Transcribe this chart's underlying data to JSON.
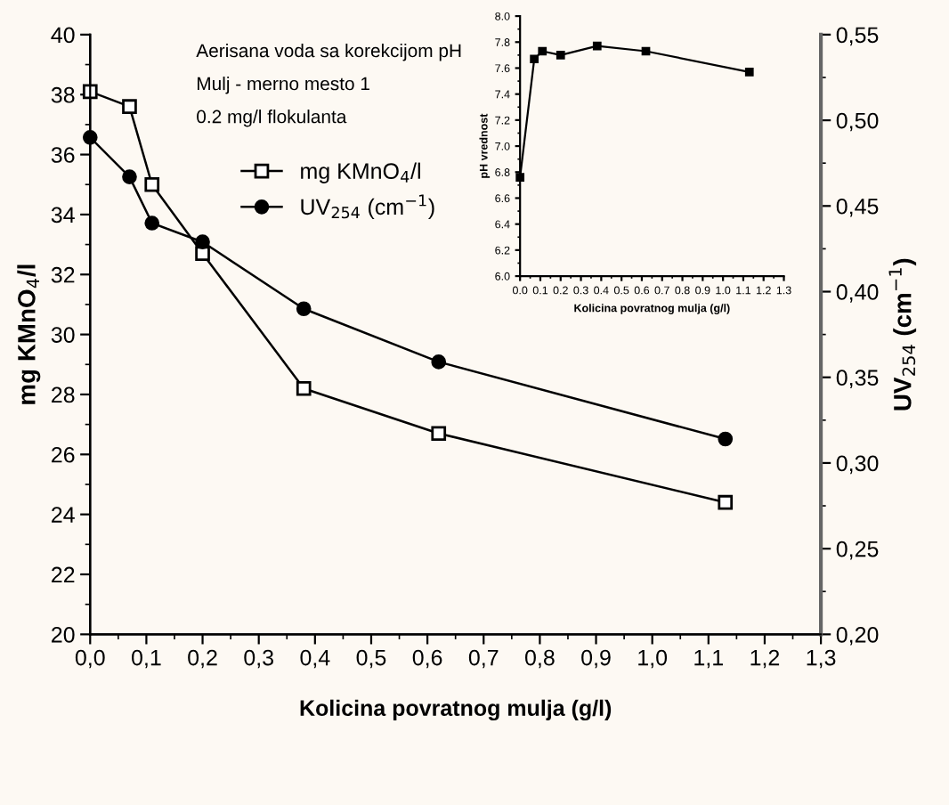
{
  "chart_data": [
    {
      "type": "line",
      "xlabel": "Kolicina povratnog mulja (g/l)",
      "ylabel": "mg KMnO$_{4}$/l",
      "y2label": "UV$_{254}$ (cm$^{−1}$)",
      "annotations": [
        "Aerisana voda sa korekcijom pH",
        "Mulj - merno mesto 1",
        "0.2 mg/l flokulanta"
      ],
      "x": [
        0,
        0.07,
        0.11,
        0.2,
        0.38,
        0.62,
        1.13
      ],
      "series": [
        {
          "name": "mg KMnO$_{4}$/l",
          "color": "#000000",
          "marker": "square",
          "values": [
            38.1,
            37.6,
            35.0,
            32.7,
            28.2,
            26.7,
            24.4
          ]
        },
        {
          "name": "UV$_{254}$ (cm$^{−1}$)",
          "color": "#000000",
          "marker": "circle",
          "axis": "y2",
          "values": [
            0.49,
            0.467,
            0.44,
            0.429,
            0.39,
            0.359,
            0.314
          ]
        }
      ],
      "xlim": [
        0,
        1.3
      ],
      "xticks": [
        {
          "value": 0,
          "label": "0,0"
        },
        {
          "value": 0.1,
          "label": "0,1"
        },
        {
          "value": 0.2,
          "label": "0,2"
        },
        {
          "value": 0.3,
          "label": "0,3"
        },
        {
          "value": 0.4,
          "label": "0,4"
        },
        {
          "value": 0.5,
          "label": "0,5"
        },
        {
          "value": 0.6,
          "label": "0,6"
        },
        {
          "value": 0.7,
          "label": "0,7"
        },
        {
          "value": 0.8,
          "label": "0,8"
        },
        {
          "value": 0.9,
          "label": "0,9"
        },
        {
          "value": 1.0,
          "label": "1,0"
        },
        {
          "value": 1.1,
          "label": "1,1"
        },
        {
          "value": 1.2,
          "label": "1,2"
        },
        {
          "value": 1.3,
          "label": "1,3"
        }
      ],
      "ylim": [
        20,
        40
      ],
      "yticks": [
        20,
        22,
        24,
        26,
        28,
        30,
        32,
        34,
        36,
        38,
        40
      ],
      "y2lim": [
        0.2,
        0.55
      ],
      "y2ticks": [
        {
          "value": 0.2,
          "label": "0,20"
        },
        {
          "value": 0.25,
          "label": "0,25"
        },
        {
          "value": 0.3,
          "label": "0,30"
        },
        {
          "value": 0.35,
          "label": "0,35"
        },
        {
          "value": 0.4,
          "label": "0,40"
        },
        {
          "value": 0.45,
          "label": "0,45"
        },
        {
          "value": 0.5,
          "label": "0,50"
        },
        {
          "value": 0.55,
          "label": "0,55"
        }
      ],
      "legend": "top",
      "grid": false,
      "line_style": "solid"
    },
    {
      "type": "line",
      "xlabel": "Kolicina povratnog mulja (g/l)",
      "ylabel": "pH vrednost",
      "x": [
        0,
        0.07,
        0.11,
        0.2,
        0.38,
        0.62,
        1.13
      ],
      "series": [
        {
          "color": "#000000",
          "marker": "square",
          "values": [
            6.76,
            7.67,
            7.73,
            7.7,
            7.77,
            7.73,
            7.57
          ]
        }
      ],
      "xlim": [
        0,
        1.3
      ],
      "xticks": [
        {
          "value": 0,
          "label": "0.0"
        },
        {
          "value": 0.1,
          "label": "0.1"
        },
        {
          "value": 0.2,
          "label": "0.2"
        },
        {
          "value": 0.3,
          "label": "0.3"
        },
        {
          "value": 0.4,
          "label": "0.4"
        },
        {
          "value": 0.5,
          "label": "0.5"
        },
        {
          "value": 0.6,
          "label": "0.6"
        },
        {
          "value": 0.7,
          "label": "0.7"
        },
        {
          "value": 0.8,
          "label": "0.8"
        },
        {
          "value": 0.9,
          "label": "0.9"
        },
        {
          "value": 1.0,
          "label": "1.0"
        },
        {
          "value": 1.1,
          "label": "1.1"
        },
        {
          "value": 1.2,
          "label": "1.2"
        },
        {
          "value": 1.3,
          "label": "1.3"
        }
      ],
      "ylim": [
        6.0,
        8.0
      ],
      "yticks": [
        {
          "value": 6.0,
          "label": "6.0"
        },
        {
          "value": 6.2,
          "label": "6.2"
        },
        {
          "value": 6.4,
          "label": "6.4"
        },
        {
          "value": 6.6,
          "label": "6.6"
        },
        {
          "value": 6.8,
          "label": "6.8"
        },
        {
          "value": 7.0,
          "label": "7.0"
        },
        {
          "value": 7.2,
          "label": "7.2"
        },
        {
          "value": 7.4,
          "label": "7.4"
        },
        {
          "value": 7.6,
          "label": "7.6"
        },
        {
          "value": 7.8,
          "label": "7.8"
        },
        {
          "value": 8.0,
          "label": "8.0"
        }
      ],
      "grid": false,
      "line_style": "solid"
    }
  ]
}
